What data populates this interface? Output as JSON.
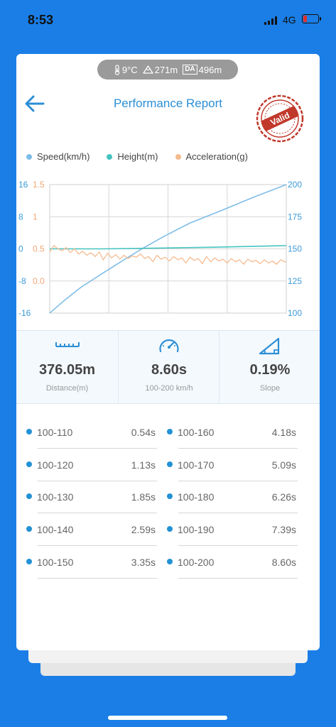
{
  "status_bar": {
    "time": "8:53",
    "network": "4G"
  },
  "env": {
    "temperature": "9°C",
    "altitude": "271m",
    "da_badge": "DA",
    "density_altitude": "496m"
  },
  "header": {
    "title": "Performance Report",
    "stamp_text": "Valid"
  },
  "legend": [
    {
      "label": "Speed(km/h)",
      "color": "#7fbde8"
    },
    {
      "label": "Height(m)",
      "color": "#45c3c0"
    },
    {
      "label": "Acceleration(g)",
      "color": "#f5bb90"
    }
  ],
  "chart_data": {
    "type": "line",
    "x_range": [
      0,
      8.6
    ],
    "axes": {
      "left_height": {
        "ticks": [
          "16",
          "8",
          "0",
          "-8",
          "-16"
        ],
        "range": [
          -16,
          16
        ],
        "color": "#3b9bd8"
      },
      "left_accel": {
        "ticks": [
          "1.5",
          "1",
          "0.5",
          "0.0"
        ],
        "range": [
          -0.5,
          1.5
        ],
        "color": "#f0a674"
      },
      "right_speed": {
        "ticks": [
          "200",
          "175",
          "150",
          "125",
          "100"
        ],
        "range": [
          100,
          200
        ],
        "color": "#3b9bd8"
      }
    },
    "grid": true,
    "series": [
      {
        "name": "Speed(km/h)",
        "color": "#7fbde8",
        "axis": "right_speed",
        "x": [
          0,
          0.54,
          1.13,
          1.85,
          2.59,
          3.35,
          4.18,
          5.09,
          6.26,
          7.39,
          8.6
        ],
        "values": [
          100,
          110,
          120,
          130,
          140,
          150,
          160,
          170,
          180,
          190,
          200
        ]
      },
      {
        "name": "Height(m)",
        "color": "#45c3c0",
        "axis": "left_height",
        "x": [
          0,
          2,
          4,
          6,
          8.6
        ],
        "values": [
          0,
          0,
          0.2,
          0.4,
          0.8
        ]
      },
      {
        "name": "Acceleration(g)",
        "color": "#f5bb90",
        "axis": "left_accel",
        "x": [
          0,
          0.15,
          0.3,
          0.45,
          0.6,
          0.75,
          0.9,
          1.05,
          1.2,
          1.35,
          1.5,
          1.65,
          1.8,
          1.95,
          2.1,
          2.25,
          2.4,
          2.55,
          2.7,
          2.85,
          3.0,
          3.15,
          3.3,
          3.45,
          3.6,
          3.75,
          3.9,
          4.05,
          4.2,
          4.35,
          4.5,
          4.65,
          4.8,
          4.95,
          5.1,
          5.25,
          5.4,
          5.55,
          5.7,
          5.85,
          6.0,
          6.15,
          6.3,
          6.45,
          6.6,
          6.75,
          6.9,
          7.05,
          7.2,
          7.35,
          7.5,
          7.65,
          7.8,
          7.95,
          8.1,
          8.25,
          8.4,
          8.6
        ],
        "values": [
          0.45,
          0.55,
          0.5,
          0.47,
          0.52,
          0.44,
          0.5,
          0.42,
          0.46,
          0.4,
          0.44,
          0.38,
          0.45,
          0.33,
          0.43,
          0.36,
          0.41,
          0.34,
          0.4,
          0.35,
          0.39,
          0.37,
          0.42,
          0.35,
          0.38,
          0.3,
          0.4,
          0.34,
          0.37,
          0.31,
          0.38,
          0.33,
          0.36,
          0.28,
          0.37,
          0.32,
          0.35,
          0.27,
          0.38,
          0.3,
          0.36,
          0.31,
          0.34,
          0.28,
          0.35,
          0.3,
          0.33,
          0.26,
          0.34,
          0.3,
          0.32,
          0.27,
          0.33,
          0.28,
          0.31,
          0.26,
          0.33,
          0.29
        ]
      }
    ]
  },
  "stats": [
    {
      "value": "376.05m",
      "label": "Distance(m)",
      "icon": "ruler-icon"
    },
    {
      "value": "8.60s",
      "label": "100-200 km/h",
      "icon": "speedometer-icon"
    },
    {
      "value": "0.19%",
      "label": "Slope",
      "icon": "slope-icon"
    }
  ],
  "splits": {
    "left": [
      {
        "range": "100-110",
        "time": "0.54s"
      },
      {
        "range": "100-120",
        "time": "1.13s"
      },
      {
        "range": "100-130",
        "time": "1.85s"
      },
      {
        "range": "100-140",
        "time": "2.59s"
      },
      {
        "range": "100-150",
        "time": "3.35s"
      }
    ],
    "right": [
      {
        "range": "100-160",
        "time": "4.18s"
      },
      {
        "range": "100-170",
        "time": "5.09s"
      },
      {
        "range": "100-180",
        "time": "6.26s"
      },
      {
        "range": "100-190",
        "time": "7.39s"
      },
      {
        "range": "100-200",
        "time": "8.60s"
      }
    ]
  },
  "colors": {
    "background": "#1a7ee6",
    "accent": "#2c8fd6",
    "stamp": "#c0392b"
  }
}
